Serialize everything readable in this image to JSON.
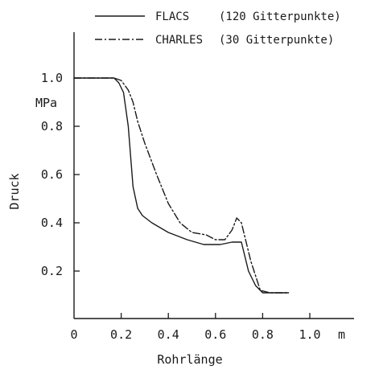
{
  "chart_data": {
    "type": "line",
    "title": "",
    "xlabel": "Rohrlänge",
    "ylabel": "Druck",
    "x_unit": "m",
    "y_unit": "MPa",
    "xlim": [
      0,
      1.0
    ],
    "ylim": [
      0.1,
      1.1
    ],
    "xticks": [
      {
        "value": 0,
        "label": "0"
      },
      {
        "value": 0.2,
        "label": "0.2"
      },
      {
        "value": 0.4,
        "label": "0.4"
      },
      {
        "value": 0.6,
        "label": "0.6"
      },
      {
        "value": 0.8,
        "label": "0.8"
      },
      {
        "value": 1.0,
        "label": "1.0"
      }
    ],
    "yticks": [
      {
        "value": 1.0,
        "label": "1.0"
      },
      {
        "value": 0.8,
        "label": "0.8"
      },
      {
        "value": 0.6,
        "label": "0.6"
      },
      {
        "value": 0.4,
        "label": "0.4"
      },
      {
        "value": 0.2,
        "label": "0.2"
      }
    ],
    "grid": false,
    "legend_position": "top",
    "series": [
      {
        "name": "FLACS",
        "legend_note": "(120 Gitterpunkte)",
        "style": "solid",
        "color": "#1a1a1a",
        "x": [
          0,
          0.17,
          0.19,
          0.21,
          0.23,
          0.25,
          0.27,
          0.29,
          0.33,
          0.4,
          0.48,
          0.55,
          0.62,
          0.67,
          0.69,
          0.71,
          0.74,
          0.77,
          0.8,
          0.85,
          0.91
        ],
        "y": [
          1.0,
          1.0,
          0.98,
          0.94,
          0.8,
          0.55,
          0.46,
          0.43,
          0.4,
          0.36,
          0.33,
          0.31,
          0.31,
          0.32,
          0.32,
          0.32,
          0.2,
          0.14,
          0.11,
          0.11,
          0.11
        ]
      },
      {
        "name": "CHARLES",
        "legend_note": "(30 Gitterpunkte)",
        "style": "dashdot",
        "color": "#1a1a1a",
        "x": [
          0,
          0.17,
          0.2,
          0.23,
          0.25,
          0.27,
          0.3,
          0.35,
          0.4,
          0.45,
          0.5,
          0.56,
          0.6,
          0.64,
          0.67,
          0.69,
          0.71,
          0.75,
          0.79,
          0.83,
          0.91
        ],
        "y": [
          1.0,
          1.0,
          0.99,
          0.95,
          0.9,
          0.82,
          0.73,
          0.6,
          0.48,
          0.4,
          0.36,
          0.35,
          0.33,
          0.33,
          0.37,
          0.42,
          0.4,
          0.24,
          0.12,
          0.11,
          0.11
        ]
      }
    ]
  }
}
